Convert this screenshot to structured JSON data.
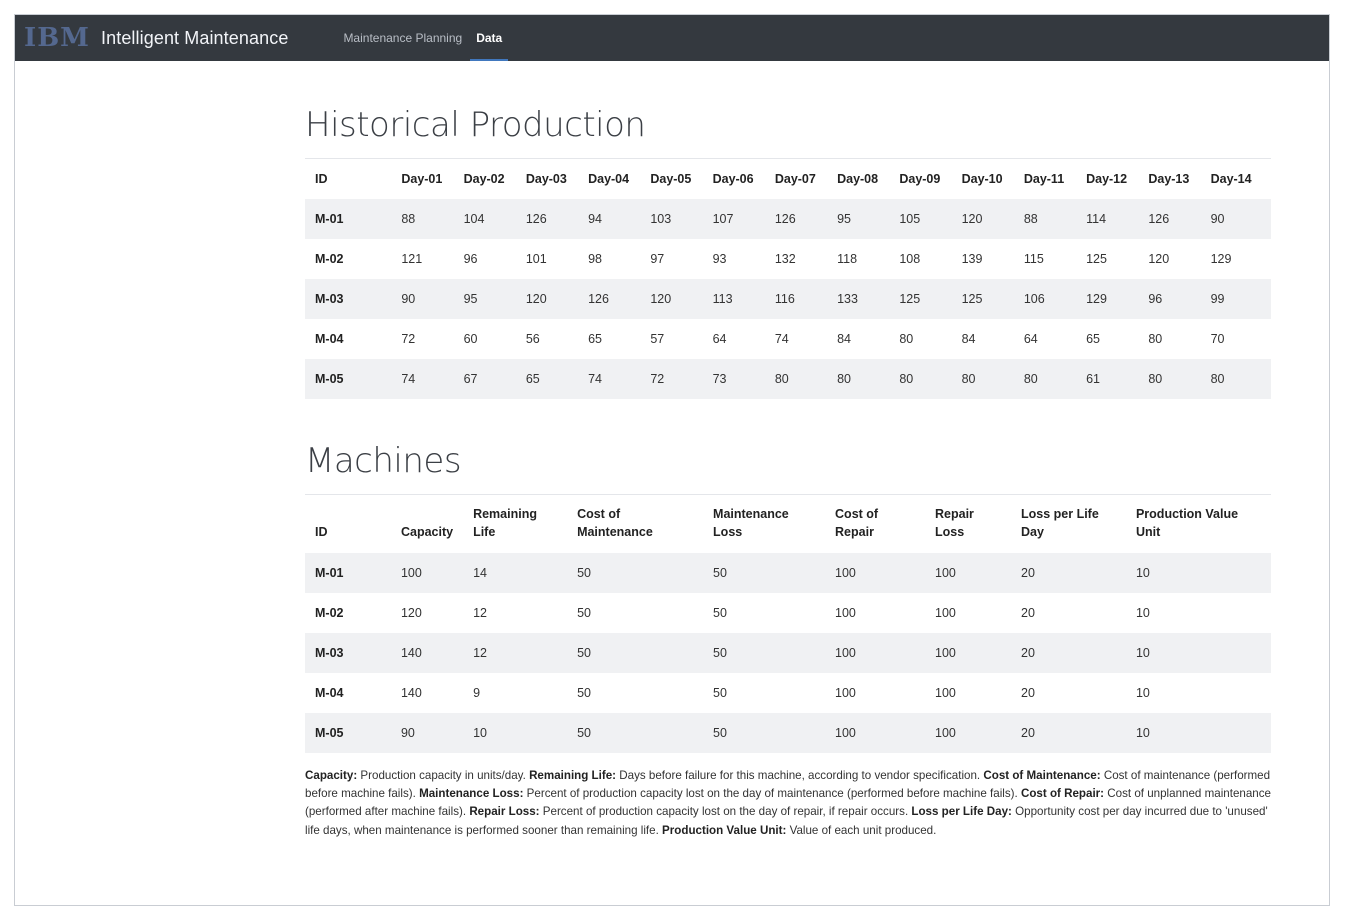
{
  "app": {
    "logo_text": "IBM",
    "title": "Intelligent Maintenance"
  },
  "nav": {
    "items": [
      {
        "label": "Maintenance Planning",
        "active": false
      },
      {
        "label": "Data",
        "active": true
      }
    ]
  },
  "historical": {
    "title": "Historical Production",
    "columns": [
      "ID",
      "Day-01",
      "Day-02",
      "Day-03",
      "Day-04",
      "Day-05",
      "Day-06",
      "Day-07",
      "Day-08",
      "Day-09",
      "Day-10",
      "Day-11",
      "Day-12",
      "Day-13",
      "Day-14"
    ],
    "rows": [
      [
        "M-01",
        "88",
        "104",
        "126",
        "94",
        "103",
        "107",
        "126",
        "95",
        "105",
        "120",
        "88",
        "114",
        "126",
        "90"
      ],
      [
        "M-02",
        "121",
        "96",
        "101",
        "98",
        "97",
        "93",
        "132",
        "118",
        "108",
        "139",
        "115",
        "125",
        "120",
        "129"
      ],
      [
        "M-03",
        "90",
        "95",
        "120",
        "126",
        "120",
        "113",
        "116",
        "133",
        "125",
        "125",
        "106",
        "129",
        "96",
        "99"
      ],
      [
        "M-04",
        "72",
        "60",
        "56",
        "65",
        "57",
        "64",
        "74",
        "84",
        "80",
        "84",
        "64",
        "65",
        "80",
        "70"
      ],
      [
        "M-05",
        "74",
        "67",
        "65",
        "74",
        "72",
        "73",
        "80",
        "80",
        "80",
        "80",
        "80",
        "61",
        "80",
        "80"
      ]
    ]
  },
  "machines": {
    "title": "Machines",
    "columns": [
      [
        "",
        "ID"
      ],
      [
        "",
        "Capacity"
      ],
      [
        "Remaining",
        "Life"
      ],
      [
        "Cost of",
        "Maintenance"
      ],
      [
        "Maintenance",
        "Loss"
      ],
      [
        "Cost of",
        "Repair"
      ],
      [
        "Repair",
        "Loss"
      ],
      [
        "Loss per Life",
        "Day"
      ],
      [
        "Production Value",
        "Unit"
      ]
    ],
    "rows": [
      [
        "M-01",
        "100",
        "14",
        "50",
        "50",
        "100",
        "100",
        "20",
        "10"
      ],
      [
        "M-02",
        "120",
        "12",
        "50",
        "50",
        "100",
        "100",
        "20",
        "10"
      ],
      [
        "M-03",
        "140",
        "12",
        "50",
        "50",
        "100",
        "100",
        "20",
        "10"
      ],
      [
        "M-04",
        "140",
        "9",
        "50",
        "50",
        "100",
        "100",
        "20",
        "10"
      ],
      [
        "M-05",
        "90",
        "10",
        "50",
        "50",
        "100",
        "100",
        "20",
        "10"
      ]
    ]
  },
  "notes": [
    {
      "term": "Capacity:",
      "text": "Production capacity in units/day."
    },
    {
      "term": "Remaining Life:",
      "text": "Days before failure for this machine, according to vendor specification."
    },
    {
      "term": "Cost of Maintenance:",
      "text": "Cost of maintenance (performed before machine fails)."
    },
    {
      "term": "Maintenance Loss:",
      "text": "Percent of production capacity lost on the day of maintenance (performed before machine fails)."
    },
    {
      "term": "Cost of Repair:",
      "text": "Cost of unplanned maintenance (performed after machine fails)."
    },
    {
      "term": "Repair Loss:",
      "text": "Percent of production capacity lost on the day of repair, if repair occurs."
    },
    {
      "term": "Loss per Life Day:",
      "text": "Opportunity cost per day incurred due to 'unused' life days, when maintenance is performed sooner than remaining life."
    },
    {
      "term": "Production Value Unit:",
      "text": "Value of each unit produced."
    }
  ]
}
